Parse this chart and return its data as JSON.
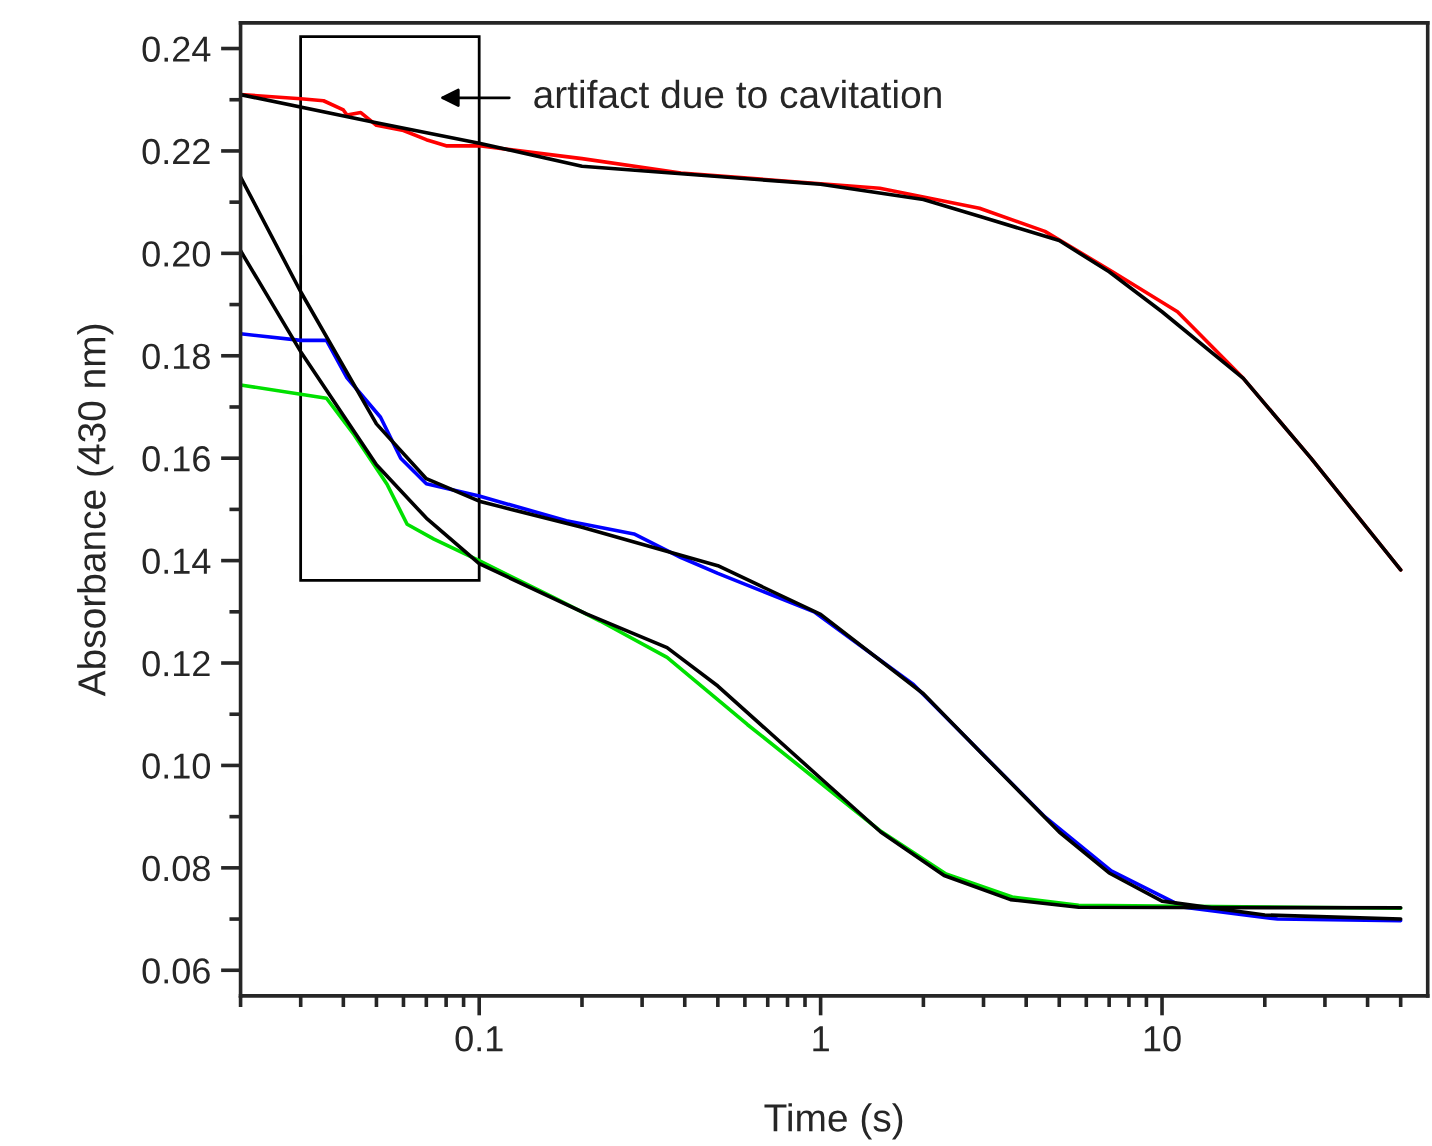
{
  "chart_data": {
    "type": "line",
    "xlabel": "Time (s)",
    "ylabel": "Absorbance (430 nm)",
    "log": "x",
    "xlim": [
      0.02,
      60
    ],
    "ylim": [
      0.055,
      0.245
    ],
    "grid": false,
    "legend": false,
    "marker": "none",
    "line_style": "solid",
    "xticks": [
      {
        "value": 0.02,
        "label": null
      },
      {
        "value": 0.03,
        "label": null
      },
      {
        "value": 0.04,
        "label": null
      },
      {
        "value": 0.05,
        "label": null
      },
      {
        "value": 0.06,
        "label": null
      },
      {
        "value": 0.07,
        "label": null
      },
      {
        "value": 0.08,
        "label": null
      },
      {
        "value": 0.09,
        "label": null
      },
      0.1,
      {
        "value": 0.2,
        "label": null
      },
      {
        "value": 0.3,
        "label": null
      },
      {
        "value": 0.4,
        "label": null
      },
      {
        "value": 0.5,
        "label": null
      },
      {
        "value": 0.6,
        "label": null
      },
      {
        "value": 0.7,
        "label": null
      },
      {
        "value": 0.8,
        "label": null
      },
      {
        "value": 0.9,
        "label": null
      },
      1,
      {
        "value": 2,
        "label": null
      },
      {
        "value": 3,
        "label": null
      },
      {
        "value": 4,
        "label": null
      },
      {
        "value": 5,
        "label": null
      },
      {
        "value": 6,
        "label": null
      },
      {
        "value": 7,
        "label": null
      },
      {
        "value": 8,
        "label": null
      },
      {
        "value": 9,
        "label": null
      },
      10,
      {
        "value": 20,
        "label": null
      },
      {
        "value": 30,
        "label": null
      },
      {
        "value": 40,
        "label": null
      },
      {
        "value": 50,
        "label": null
      }
    ],
    "yticks": [
      {
        "value": 0.06,
        "label": "0.06"
      },
      {
        "value": 0.07,
        "label": null
      },
      {
        "value": 0.08,
        "label": "0.08"
      },
      {
        "value": 0.09,
        "label": null
      },
      {
        "value": 0.1,
        "label": "0.10"
      },
      {
        "value": 0.11,
        "label": null
      },
      {
        "value": 0.12,
        "label": "0.12"
      },
      {
        "value": 0.13,
        "label": null
      },
      {
        "value": 0.14,
        "label": "0.14"
      },
      {
        "value": 0.15,
        "label": null
      },
      {
        "value": 0.16,
        "label": "0.16"
      },
      {
        "value": 0.17,
        "label": null
      },
      {
        "value": 0.18,
        "label": "0.18"
      },
      {
        "value": 0.19,
        "label": null
      },
      {
        "value": 0.2,
        "label": "0.20"
      },
      {
        "value": 0.21,
        "label": null
      },
      {
        "value": 0.22,
        "label": "0.22"
      },
      {
        "value": 0.23,
        "label": null
      },
      {
        "value": 0.24,
        "label": "0.24"
      }
    ],
    "annotations": [
      "artifact due to cavitation"
    ],
    "series": [
      {
        "color": "#ff0000",
        "x": [
          0.02,
          0.03,
          0.035,
          0.04,
          0.041,
          0.045,
          0.05,
          0.06,
          0.07,
          0.08,
          0.1,
          0.2,
          0.39,
          1.49,
          2.92,
          4.54,
          7.16,
          11.1,
          17.3,
          27.3,
          50
        ],
        "values": [
          0.231,
          0.2302,
          0.2298,
          0.228,
          0.227,
          0.2275,
          0.225,
          0.224,
          0.2222,
          0.221,
          0.221,
          0.2185,
          0.2157,
          0.2127,
          0.2088,
          0.2043,
          0.1964,
          0.1886,
          0.1756,
          0.16,
          0.1382
        ]
      },
      {
        "color": "#0000ff",
        "x": [
          0.02,
          0.03,
          0.0357,
          0.041,
          0.0514,
          0.0589,
          0.07,
          0.1,
          0.18,
          0.284,
          0.39,
          0.5,
          0.957,
          1.87,
          2.92,
          4.55,
          7.1,
          11.6,
          21.8,
          50
        ],
        "values": [
          0.1843,
          0.183,
          0.183,
          0.1757,
          0.168,
          0.16,
          0.155,
          0.1526,
          0.1478,
          0.1452,
          0.1406,
          0.1375,
          0.13,
          0.1158,
          0.1028,
          0.0899,
          0.0794,
          0.0723,
          0.07,
          0.0697
        ]
      },
      {
        "color": "#00e000",
        "x": [
          0.02,
          0.03,
          0.0357,
          0.043,
          0.0537,
          0.0615,
          0.0737,
          0.1,
          0.166,
          0.226,
          0.355,
          0.61,
          0.957,
          1.49,
          2.33,
          3.64,
          5.7,
          50
        ],
        "values": [
          0.1743,
          0.1725,
          0.1717,
          0.1646,
          0.1549,
          0.1471,
          0.1442,
          0.14,
          0.1327,
          0.1282,
          0.1211,
          0.108,
          0.0976,
          0.0873,
          0.0788,
          0.0743,
          0.0727,
          0.0721
        ]
      },
      {
        "color": "#000000",
        "x": [
          0.02,
          0.05,
          0.1,
          0.2,
          0.5,
          1,
          2,
          3,
          5,
          7,
          10,
          17.3,
          27.3,
          50
        ],
        "values": [
          0.231,
          0.2255,
          0.2215,
          0.217,
          0.215,
          0.2135,
          0.2105,
          0.207,
          0.2025,
          0.1964,
          0.1886,
          0.1756,
          0.16,
          0.1382
        ]
      },
      {
        "color": "#000000",
        "x": [
          0.02,
          0.03,
          0.05,
          0.07,
          0.1,
          0.2,
          0.5,
          1,
          2,
          3,
          5,
          7,
          10,
          20,
          50
        ],
        "values": [
          0.2149,
          0.1925,
          0.1667,
          0.156,
          0.1516,
          0.1465,
          0.139,
          0.1295,
          0.114,
          0.102,
          0.087,
          0.079,
          0.0735,
          0.0708,
          0.07
        ]
      },
      {
        "color": "#000000",
        "x": [
          0.02,
          0.03,
          0.05,
          0.07,
          0.1,
          0.206,
          0.355,
          0.5,
          1,
          1.5,
          2.3,
          3.6,
          5.7,
          50
        ],
        "values": [
          0.2005,
          0.1808,
          0.1587,
          0.1483,
          0.1394,
          0.1296,
          0.123,
          0.1155,
          0.0975,
          0.087,
          0.0785,
          0.0738,
          0.0723,
          0.0722
        ]
      }
    ]
  }
}
